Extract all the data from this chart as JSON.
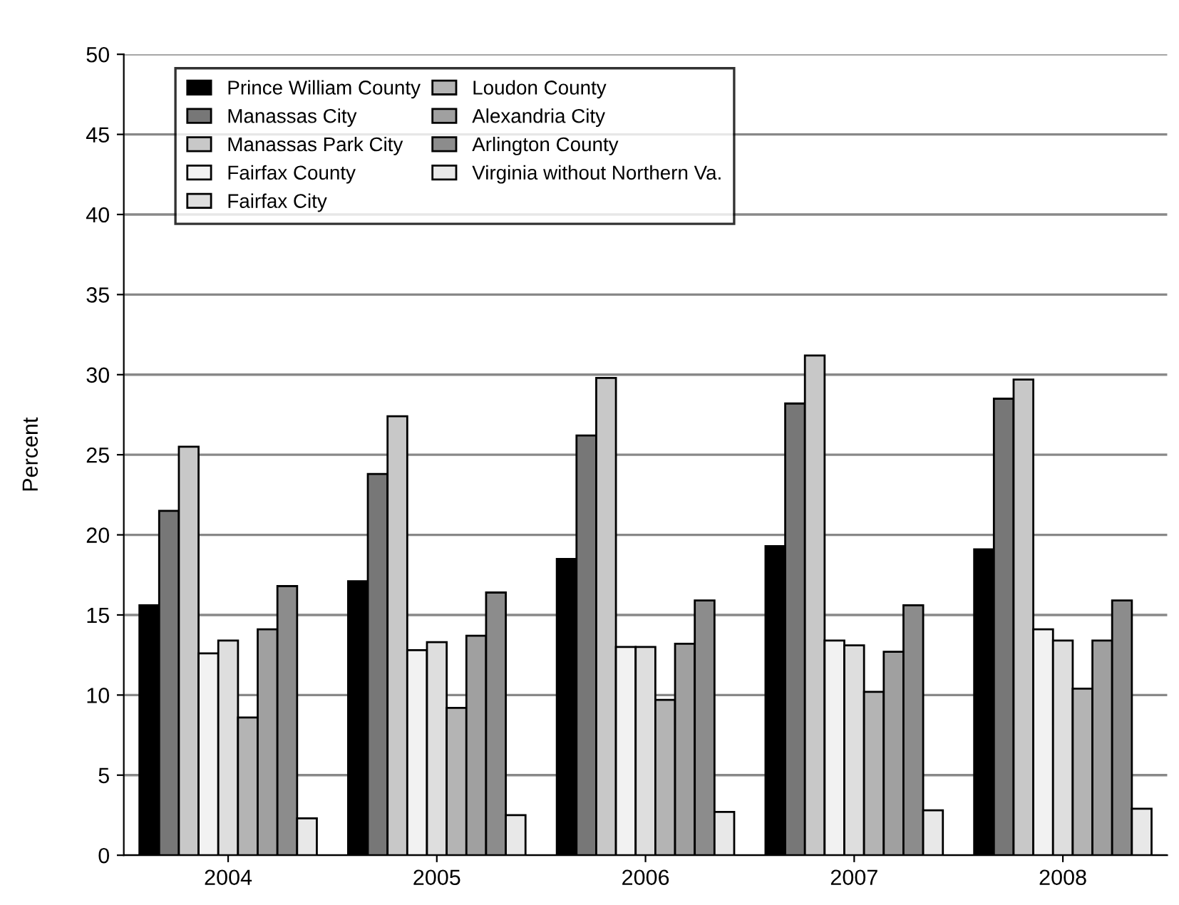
{
  "chart_data": {
    "type": "bar",
    "ylabel": "Percent",
    "categories": [
      "2004",
      "2005",
      "2006",
      "2007",
      "2008"
    ],
    "series": [
      {
        "name": "Prince William County",
        "color": "#000000",
        "values": [
          15.6,
          17.1,
          18.5,
          19.3,
          19.1
        ]
      },
      {
        "name": "Manassas City",
        "color": "#777777",
        "values": [
          21.5,
          23.8,
          26.2,
          28.2,
          28.5
        ]
      },
      {
        "name": "Manassas Park City",
        "color": "#c8c8c8",
        "values": [
          25.5,
          27.4,
          29.8,
          31.2,
          29.7
        ]
      },
      {
        "name": "Fairfax County",
        "color": "#f2f2f2",
        "values": [
          12.6,
          12.8,
          13.0,
          13.4,
          14.1
        ]
      },
      {
        "name": "Fairfax City",
        "color": "#dedede",
        "values": [
          13.4,
          13.3,
          13.0,
          13.1,
          13.4
        ]
      },
      {
        "name": "Loudon County",
        "color": "#b4b4b4",
        "values": [
          8.6,
          9.2,
          9.7,
          10.2,
          10.4
        ]
      },
      {
        "name": "Alexandria City",
        "color": "#a0a0a0",
        "values": [
          14.1,
          13.7,
          13.2,
          12.7,
          13.4
        ]
      },
      {
        "name": "Arlington County",
        "color": "#8c8c8c",
        "values": [
          16.8,
          16.4,
          15.9,
          15.6,
          15.9
        ]
      },
      {
        "name": "Virginia without Northern Va.",
        "color": "#e8e8e8",
        "values": [
          2.3,
          2.5,
          2.7,
          2.8,
          2.9
        ]
      }
    ],
    "ylim": [
      0,
      50
    ],
    "yticks": [
      0,
      5,
      10,
      15,
      20,
      25,
      30,
      35,
      40,
      45,
      50
    ],
    "grid": "y",
    "legend": "top left"
  }
}
